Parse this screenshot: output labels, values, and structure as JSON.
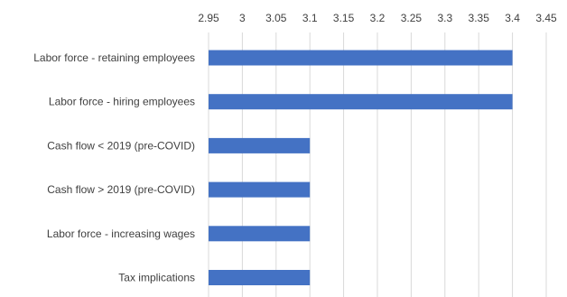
{
  "chart_data": {
    "type": "bar",
    "orientation": "horizontal",
    "categories": [
      "Labor force - retaining employees",
      "Labor force - hiring employees",
      "Cash flow < 2019 (pre-COVID)",
      "Cash flow > 2019 (pre-COVID)",
      "Labor force - increasing wages",
      "Tax implications"
    ],
    "values": [
      3.4,
      3.4,
      3.1,
      3.1,
      3.1,
      3.1
    ],
    "xlim": [
      2.95,
      3.45
    ],
    "xticks": [
      "2.95",
      "3",
      "3.05",
      "3.1",
      "3.15",
      "3.2",
      "3.25",
      "3.3",
      "3.35",
      "3.4",
      "3.45"
    ],
    "axis_position": "top",
    "grid": true,
    "bar_color": "#4472c4",
    "title": "",
    "xlabel": "",
    "ylabel": ""
  }
}
